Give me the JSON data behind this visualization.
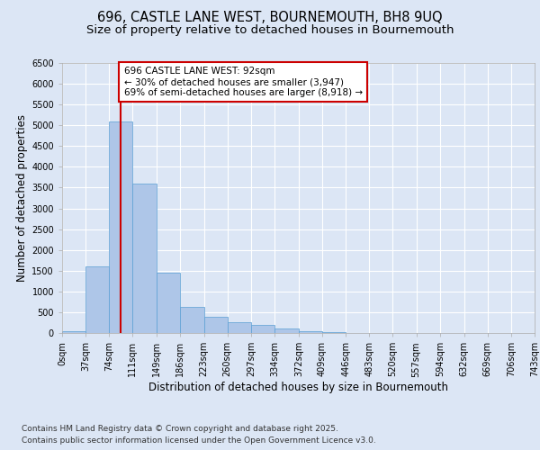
{
  "title_line1": "696, CASTLE LANE WEST, BOURNEMOUTH, BH8 9UQ",
  "title_line2": "Size of property relative to detached houses in Bournemouth",
  "xlabel": "Distribution of detached houses by size in Bournemouth",
  "ylabel": "Number of detached properties",
  "annotation_title": "696 CASTLE LANE WEST: 92sqm",
  "annotation_line2": "← 30% of detached houses are smaller (3,947)",
  "annotation_line3": "69% of semi-detached houses are larger (8,918) →",
  "footer_line1": "Contains HM Land Registry data © Crown copyright and database right 2025.",
  "footer_line2": "Contains public sector information licensed under the Open Government Licence v3.0.",
  "bin_edges": [
    0,
    37,
    74,
    111,
    149,
    186,
    223,
    260,
    297,
    334,
    372,
    409,
    446,
    483,
    520,
    557,
    594,
    632,
    669,
    706,
    743
  ],
  "bar_heights": [
    50,
    1600,
    5100,
    3600,
    1450,
    620,
    380,
    270,
    200,
    110,
    50,
    20,
    10,
    5,
    2,
    1,
    0,
    0,
    0,
    0
  ],
  "bar_color": "#aec6e8",
  "bar_edge_color": "#5a9fd4",
  "vline_color": "#cc0000",
  "vline_x": 92,
  "annotation_box_edge_color": "#cc0000",
  "annotation_box_face_color": "#ffffff",
  "background_color": "#dce6f5",
  "plot_background_color": "#dce6f5",
  "ylim": [
    0,
    6500
  ],
  "yticks": [
    0,
    500,
    1000,
    1500,
    2000,
    2500,
    3000,
    3500,
    4000,
    4500,
    5000,
    5500,
    6000,
    6500
  ],
  "tick_labels": [
    "0sqm",
    "37sqm",
    "74sqm",
    "111sqm",
    "149sqm",
    "186sqm",
    "223sqm",
    "260sqm",
    "297sqm",
    "334sqm",
    "372sqm",
    "409sqm",
    "446sqm",
    "483sqm",
    "520sqm",
    "557sqm",
    "594sqm",
    "632sqm",
    "669sqm",
    "706sqm",
    "743sqm"
  ],
  "title_fontsize": 10.5,
  "subtitle_fontsize": 9.5,
  "axis_label_fontsize": 8.5,
  "tick_fontsize": 7,
  "annotation_fontsize": 7.5,
  "footer_fontsize": 6.5
}
